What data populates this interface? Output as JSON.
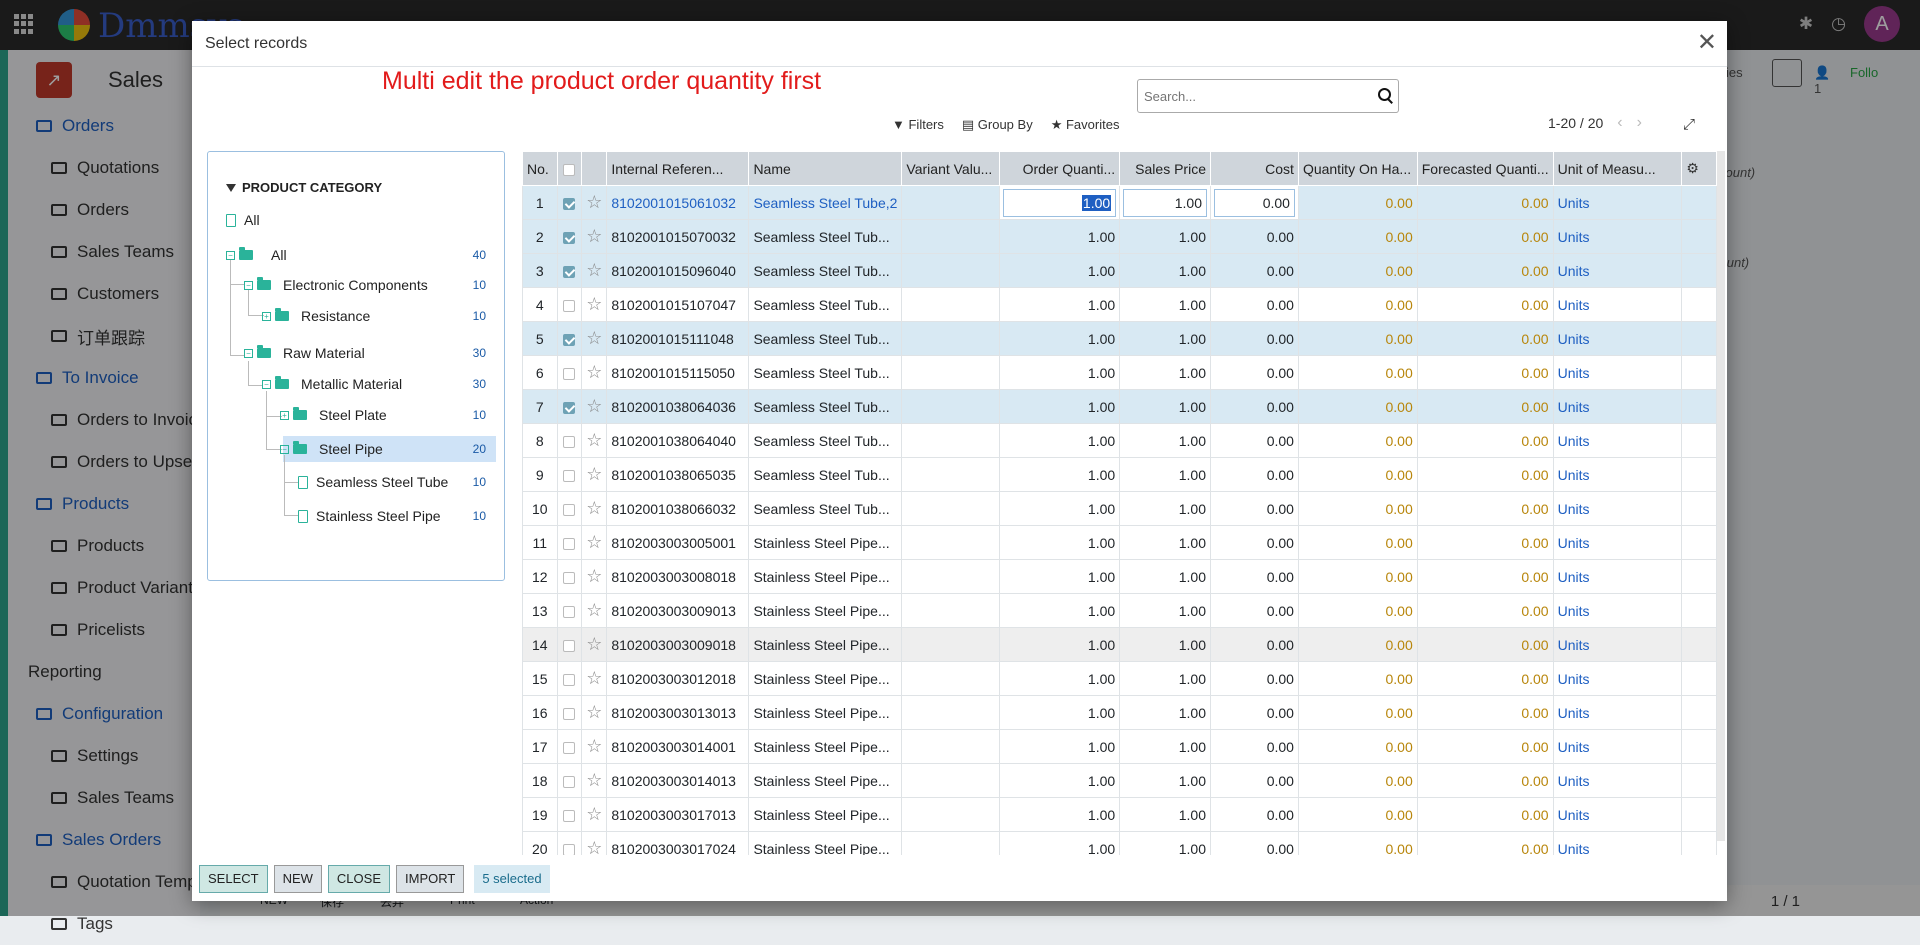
{
  "topbar": {
    "brand": "Dmmsys",
    "avatar_letter": "A"
  },
  "app": {
    "title": "Sales"
  },
  "sidebar": {
    "items": [
      {
        "label": "Orders",
        "level": "section"
      },
      {
        "label": "Quotations",
        "level": "sub"
      },
      {
        "label": "Orders",
        "level": "sub"
      },
      {
        "label": "Sales Teams",
        "level": "sub"
      },
      {
        "label": "Customers",
        "level": "sub"
      },
      {
        "label": "订单跟踪",
        "level": "sub"
      },
      {
        "label": "To Invoice",
        "level": "section"
      },
      {
        "label": "Orders to Invoic",
        "level": "sub"
      },
      {
        "label": "Orders to Upsel",
        "level": "sub"
      },
      {
        "label": "Products",
        "level": "section"
      },
      {
        "label": "Products",
        "level": "sub"
      },
      {
        "label": "Product Variant",
        "level": "sub"
      },
      {
        "label": "Pricelists",
        "level": "sub"
      },
      {
        "label": "Reporting",
        "level": "top"
      },
      {
        "label": "Configuration",
        "level": "section"
      },
      {
        "label": "Settings",
        "level": "sub"
      },
      {
        "label": "Sales Teams",
        "level": "sub"
      },
      {
        "label": "Sales Orders",
        "level": "section"
      },
      {
        "label": "Quotation Temp",
        "level": "sub"
      },
      {
        "label": "Tags",
        "level": "sub"
      }
    ]
  },
  "background": {
    "activities": "ctivities",
    "follow": "Follo",
    "amount1": "Amount)",
    "amount2": "d Amount)",
    "bottom_buttons": [
      "NEW",
      "保存",
      "丢弃",
      "Print",
      "Action"
    ],
    "bottom_pager": "1 / 1"
  },
  "modal": {
    "title": "Select records",
    "hint": "Multi edit the product order quantity first",
    "search_placeholder": "Search...",
    "filters": "Filters",
    "group_by": "Group By",
    "favorites": "Favorites",
    "pager": "1-20 / 20",
    "category": {
      "header": "PRODUCT CATEGORY",
      "nodes": [
        {
          "label": "All",
          "count": ""
        },
        {
          "label": "All",
          "count": "40"
        },
        {
          "label": "Electronic Components",
          "count": "10"
        },
        {
          "label": "Resistance",
          "count": "10"
        },
        {
          "label": "Raw Material",
          "count": "30"
        },
        {
          "label": "Metallic Material",
          "count": "30"
        },
        {
          "label": "Steel Plate",
          "count": "10"
        },
        {
          "label": "Steel Pipe",
          "count": "20"
        },
        {
          "label": "Seamless Steel Tube",
          "count": "10"
        },
        {
          "label": "Stainless Steel Pipe",
          "count": "10"
        }
      ]
    },
    "columns": [
      "No.",
      "",
      "",
      "Internal Referen...",
      "Name",
      "Variant Valu...",
      "Order Quanti...",
      "Sales Price",
      "Cost",
      "Quantity On Ha...",
      "Forecasted Quanti...",
      "Unit of Measu..."
    ],
    "rows": [
      {
        "no": "1",
        "checked": true,
        "ref": "8102001015061032",
        "name": "Seamless Steel Tube,2",
        "qty": "1.00",
        "price": "1.00",
        "cost": "0.00",
        "onhand": "0.00",
        "forecast": "0.00",
        "uom": "Units"
      },
      {
        "no": "2",
        "checked": true,
        "ref": "8102001015070032",
        "name": "Seamless Steel Tub...",
        "qty": "1.00",
        "price": "1.00",
        "cost": "0.00",
        "onhand": "0.00",
        "forecast": "0.00",
        "uom": "Units"
      },
      {
        "no": "3",
        "checked": true,
        "ref": "8102001015096040",
        "name": "Seamless Steel Tub...",
        "qty": "1.00",
        "price": "1.00",
        "cost": "0.00",
        "onhand": "0.00",
        "forecast": "0.00",
        "uom": "Units"
      },
      {
        "no": "4",
        "checked": false,
        "ref": "8102001015107047",
        "name": "Seamless Steel Tub...",
        "qty": "1.00",
        "price": "1.00",
        "cost": "0.00",
        "onhand": "0.00",
        "forecast": "0.00",
        "uom": "Units"
      },
      {
        "no": "5",
        "checked": true,
        "ref": "8102001015111048",
        "name": "Seamless Steel Tub...",
        "qty": "1.00",
        "price": "1.00",
        "cost": "0.00",
        "onhand": "0.00",
        "forecast": "0.00",
        "uom": "Units"
      },
      {
        "no": "6",
        "checked": false,
        "ref": "8102001015115050",
        "name": "Seamless Steel Tub...",
        "qty": "1.00",
        "price": "1.00",
        "cost": "0.00",
        "onhand": "0.00",
        "forecast": "0.00",
        "uom": "Units"
      },
      {
        "no": "7",
        "checked": true,
        "ref": "8102001038064036",
        "name": "Seamless Steel Tub...",
        "qty": "1.00",
        "price": "1.00",
        "cost": "0.00",
        "onhand": "0.00",
        "forecast": "0.00",
        "uom": "Units"
      },
      {
        "no": "8",
        "checked": false,
        "ref": "8102001038064040",
        "name": "Seamless Steel Tub...",
        "qty": "1.00",
        "price": "1.00",
        "cost": "0.00",
        "onhand": "0.00",
        "forecast": "0.00",
        "uom": "Units"
      },
      {
        "no": "9",
        "checked": false,
        "ref": "8102001038065035",
        "name": "Seamless Steel Tub...",
        "qty": "1.00",
        "price": "1.00",
        "cost": "0.00",
        "onhand": "0.00",
        "forecast": "0.00",
        "uom": "Units"
      },
      {
        "no": "10",
        "checked": false,
        "ref": "8102001038066032",
        "name": "Seamless Steel Tub...",
        "qty": "1.00",
        "price": "1.00",
        "cost": "0.00",
        "onhand": "0.00",
        "forecast": "0.00",
        "uom": "Units"
      },
      {
        "no": "11",
        "checked": false,
        "ref": "8102003003005001",
        "name": "Stainless Steel Pipe...",
        "qty": "1.00",
        "price": "1.00",
        "cost": "0.00",
        "onhand": "0.00",
        "forecast": "0.00",
        "uom": "Units"
      },
      {
        "no": "12",
        "checked": false,
        "ref": "8102003003008018",
        "name": "Stainless Steel Pipe...",
        "qty": "1.00",
        "price": "1.00",
        "cost": "0.00",
        "onhand": "0.00",
        "forecast": "0.00",
        "uom": "Units"
      },
      {
        "no": "13",
        "checked": false,
        "ref": "8102003003009013",
        "name": "Stainless Steel Pipe...",
        "qty": "1.00",
        "price": "1.00",
        "cost": "0.00",
        "onhand": "0.00",
        "forecast": "0.00",
        "uom": "Units"
      },
      {
        "no": "14",
        "checked": false,
        "ref": "8102003003009018",
        "name": "Stainless Steel Pipe...",
        "qty": "1.00",
        "price": "1.00",
        "cost": "0.00",
        "onhand": "0.00",
        "forecast": "0.00",
        "uom": "Units"
      },
      {
        "no": "15",
        "checked": false,
        "ref": "8102003003012018",
        "name": "Stainless Steel Pipe...",
        "qty": "1.00",
        "price": "1.00",
        "cost": "0.00",
        "onhand": "0.00",
        "forecast": "0.00",
        "uom": "Units"
      },
      {
        "no": "16",
        "checked": false,
        "ref": "8102003003013013",
        "name": "Stainless Steel Pipe...",
        "qty": "1.00",
        "price": "1.00",
        "cost": "0.00",
        "onhand": "0.00",
        "forecast": "0.00",
        "uom": "Units"
      },
      {
        "no": "17",
        "checked": false,
        "ref": "8102003003014001",
        "name": "Stainless Steel Pipe...",
        "qty": "1.00",
        "price": "1.00",
        "cost": "0.00",
        "onhand": "0.00",
        "forecast": "0.00",
        "uom": "Units"
      },
      {
        "no": "18",
        "checked": false,
        "ref": "8102003003014013",
        "name": "Stainless Steel Pipe...",
        "qty": "1.00",
        "price": "1.00",
        "cost": "0.00",
        "onhand": "0.00",
        "forecast": "0.00",
        "uom": "Units"
      },
      {
        "no": "19",
        "checked": false,
        "ref": "8102003003017013",
        "name": "Stainless Steel Pipe...",
        "qty": "1.00",
        "price": "1.00",
        "cost": "0.00",
        "onhand": "0.00",
        "forecast": "0.00",
        "uom": "Units"
      },
      {
        "no": "20",
        "checked": false,
        "ref": "8102003003017024",
        "name": "Stainless Steel Pipe...",
        "qty": "1.00",
        "price": "1.00",
        "cost": "0.00",
        "onhand": "0.00",
        "forecast": "0.00",
        "uom": "Units"
      }
    ],
    "footer": {
      "select": "SELECT",
      "new": "NEW",
      "close": "CLOSE",
      "import": "IMPORT",
      "selected": "5 selected"
    }
  }
}
